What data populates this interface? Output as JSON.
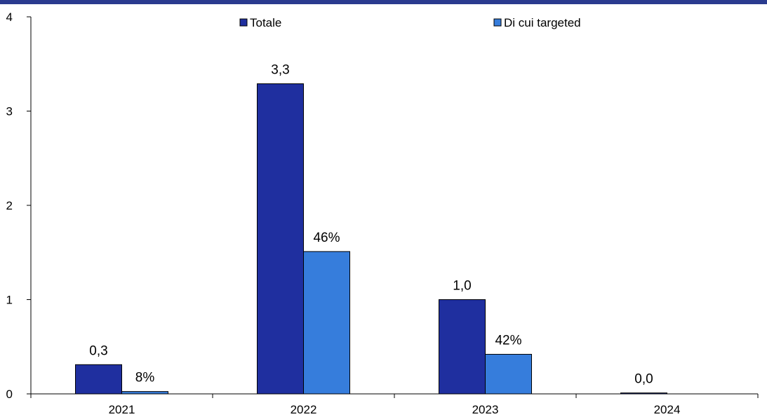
{
  "colors": {
    "top_rule": "#2a3b8f",
    "totale": "#1f2f9f",
    "targeted": "#367ddc",
    "axis": "#000000"
  },
  "chart_data": {
    "type": "bar",
    "categories": [
      "2021",
      "2022",
      "2023",
      "2024"
    ],
    "series": [
      {
        "name": "Totale",
        "values": [
          0.31,
          3.29,
          1.0,
          0.01
        ],
        "labels": [
          "0,3",
          "3,3",
          "1,0",
          "0,0"
        ]
      },
      {
        "name": "Di cui targeted",
        "values": [
          0.025,
          1.51,
          0.42,
          null
        ],
        "labels": [
          "8%",
          "46%",
          "42%",
          ""
        ]
      }
    ],
    "ylim": [
      0,
      4
    ],
    "yticks": [
      "0",
      "1",
      "2",
      "3",
      "4"
    ],
    "legend_position": "top-center",
    "grid": false
  }
}
